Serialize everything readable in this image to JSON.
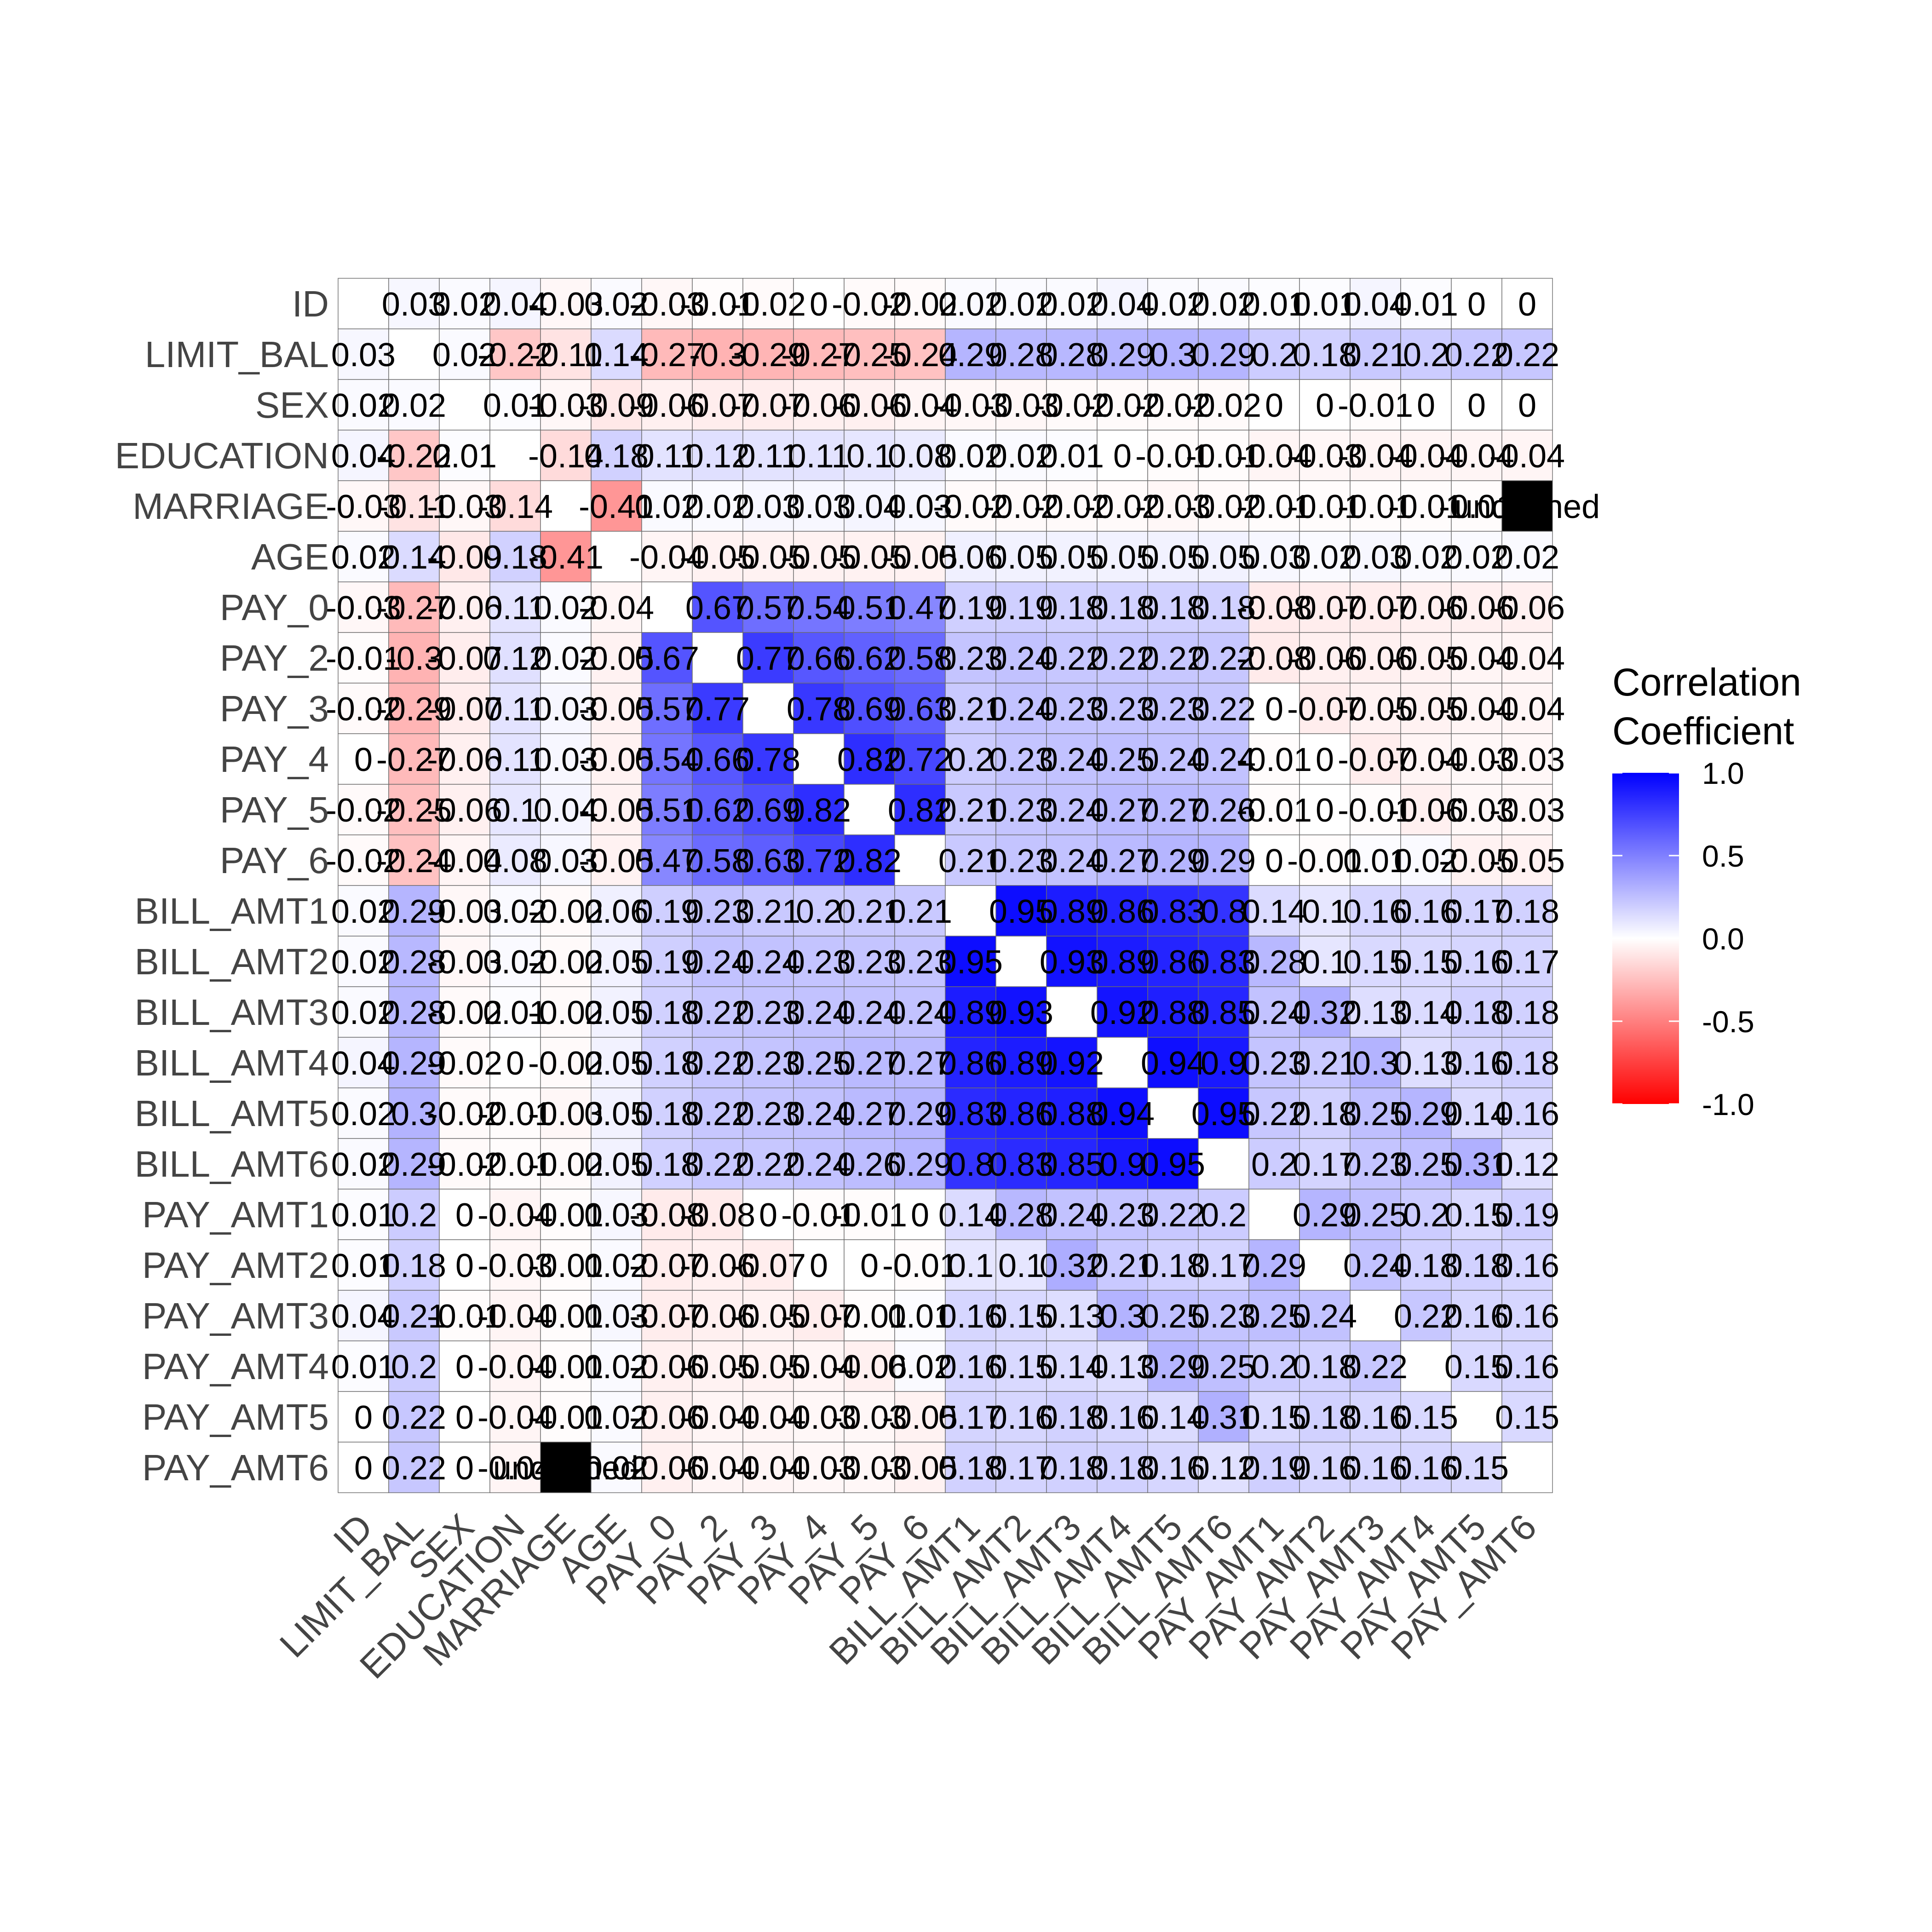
{
  "chart_data": {
    "type": "heatmap",
    "title": "",
    "variables": [
      "ID",
      "LIMIT_BAL",
      "SEX",
      "EDUCATION",
      "MARRIAGE",
      "AGE",
      "PAY_0",
      "PAY_2",
      "PAY_3",
      "PAY_4",
      "PAY_5",
      "PAY_6",
      "BILL_AMT1",
      "BILL_AMT2",
      "BILL_AMT3",
      "BILL_AMT4",
      "BILL_AMT5",
      "BILL_AMT6",
      "PAY_AMT1",
      "PAY_AMT2",
      "PAY_AMT3",
      "PAY_AMT4",
      "PAY_AMT5",
      "PAY_AMT6"
    ],
    "upper_triangle": [
      [
        0.03,
        0.02,
        0.04,
        -0.03,
        0.02,
        -0.03,
        -0.01,
        -0.02,
        0,
        -0.02,
        -0.02,
        0.02,
        0.02,
        0.02,
        0.04,
        0.02,
        0.02,
        0.01,
        0.01,
        0.04,
        0.01,
        0,
        0
      ],
      [
        0.02,
        -0.22,
        -0.11,
        0.14,
        -0.27,
        -0.3,
        -0.29,
        -0.27,
        -0.25,
        -0.24,
        0.29,
        0.28,
        0.28,
        0.29,
        0.3,
        0.29,
        0.2,
        0.18,
        0.21,
        0.2,
        0.22,
        0.22
      ],
      [
        0.01,
        -0.03,
        -0.09,
        -0.06,
        -0.07,
        -0.07,
        -0.06,
        -0.06,
        -0.04,
        -0.03,
        -0.03,
        -0.02,
        -0.02,
        -0.02,
        -0.02,
        0,
        0,
        -0.01,
        0,
        0,
        0
      ],
      [
        -0.14,
        0.18,
        0.11,
        0.12,
        0.11,
        0.11,
        0.1,
        0.08,
        0.02,
        0.02,
        0.01,
        0,
        -0.01,
        -0.01,
        -0.04,
        -0.03,
        -0.04,
        -0.04,
        -0.04,
        -0.04
      ],
      [
        -0.41,
        0.02,
        0.02,
        0.03,
        0.03,
        0.04,
        0.03,
        -0.02,
        -0.02,
        -0.02,
        -0.02,
        -0.03,
        -0.02,
        -0.01,
        -0.01,
        -0.01,
        -0.01,
        -0.01
      ],
      [
        -0.04,
        -0.05,
        -0.05,
        -0.05,
        -0.05,
        -0.05,
        0.06,
        0.05,
        0.05,
        0.05,
        0.05,
        0.05,
        0.03,
        0.02,
        0.03,
        0.02,
        0.02,
        0.02
      ],
      [
        0.67,
        0.57,
        0.54,
        0.51,
        0.47,
        0.19,
        0.19,
        0.18,
        0.18,
        0.18,
        0.18,
        -0.08,
        -0.07,
        -0.07,
        -0.06,
        -0.06,
        -0.06
      ],
      [
        0.77,
        0.66,
        0.62,
        0.58,
        0.23,
        0.24,
        0.22,
        0.22,
        0.22,
        0.22,
        -0.08,
        -0.06,
        -0.06,
        -0.05,
        -0.04,
        -0.04
      ],
      [
        0.78,
        0.69,
        0.63,
        0.21,
        0.24,
        0.23,
        0.23,
        0.23,
        0.22,
        0,
        -0.07,
        -0.05,
        -0.05,
        -0.04,
        -0.04
      ],
      [
        0.82,
        0.72,
        0.2,
        0.23,
        0.24,
        0.25,
        0.24,
        0.24,
        -0.01,
        0,
        -0.07,
        -0.04,
        -0.03,
        -0.03
      ],
      [
        0.82,
        0.21,
        0.23,
        0.24,
        0.27,
        0.27,
        0.26,
        -0.01,
        0,
        -0.01,
        -0.06,
        -0.03,
        -0.03
      ],
      [
        0.21,
        0.23,
        0.24,
        0.27,
        0.29,
        0.29,
        0,
        -0.01,
        0.01,
        0.02,
        -0.05,
        -0.05
      ],
      [
        0.95,
        0.89,
        0.86,
        0.83,
        0.8,
        0.14,
        0.1,
        0.16,
        0.16,
        0.17,
        0.18
      ],
      [
        0.93,
        0.89,
        0.86,
        0.83,
        0.28,
        0.1,
        0.15,
        0.15,
        0.16,
        0.17
      ],
      [
        0.92,
        0.88,
        0.85,
        0.24,
        0.32,
        0.13,
        0.14,
        0.18,
        0.18
      ],
      [
        0.94,
        0.9,
        0.23,
        0.21,
        0.3,
        0.13,
        0.16,
        0.18
      ],
      [
        0.95,
        0.22,
        0.18,
        0.25,
        0.29,
        0.14,
        0.16
      ],
      [
        0.2,
        0.17,
        0.23,
        0.25,
        0.31,
        0.12
      ],
      [
        0.29,
        0.25,
        0.2,
        0.15,
        0.19
      ],
      [
        0.24,
        0.18,
        0.18,
        0.16
      ],
      [
        0.22,
        0.16,
        0.16
      ],
      [
        0.15,
        0.16
      ],
      [
        0.15
      ]
    ],
    "color_scale": {
      "low": "#FF0000",
      "mid": "#FFFFFF",
      "high": "#0000FF",
      "limits": [
        -1,
        1
      ]
    },
    "legend": {
      "title_line1": "Correlation",
      "title_line2": "Coefficient",
      "ticks": [
        1.0,
        0.5,
        0.0,
        -0.5,
        -1.0
      ],
      "tick_labels": [
        "1.0",
        "0.5",
        "0.0",
        "-0.5",
        "-1.0"
      ],
      "placement": "right"
    }
  }
}
